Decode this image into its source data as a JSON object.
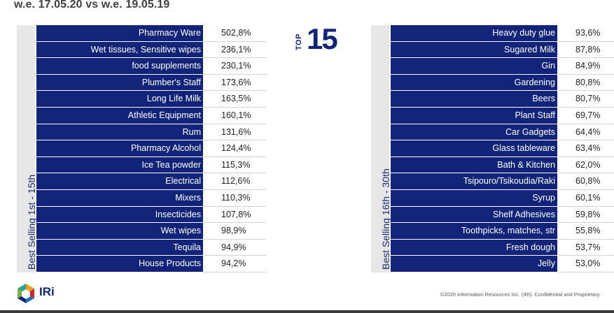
{
  "header": {
    "title": "w.e. 17.05.20 vs w.e. 19.05.19"
  },
  "badge": {
    "word": "TOP",
    "number": "15"
  },
  "left_panel": {
    "side_label": "Best Selling 1st - 15th",
    "rows": [
      {
        "category": "Pharmacy Ware",
        "value": "502,8%"
      },
      {
        "category": "Wet tissues, Sensitive wipes",
        "value": "236,1%"
      },
      {
        "category": "food supplements",
        "value": "230,1%"
      },
      {
        "category": "Plumber's Staff",
        "value": "173,6%"
      },
      {
        "category": "Long Life Milk",
        "value": "163,5%"
      },
      {
        "category": "Athletic Equipment",
        "value": "160,1%"
      },
      {
        "category": "Rum",
        "value": "131,6%"
      },
      {
        "category": "Pharmacy Alcohol",
        "value": "124,4%"
      },
      {
        "category": "Ice Tea powder",
        "value": "115,3%"
      },
      {
        "category": "Electrical",
        "value": "112,6%"
      },
      {
        "category": "Mixers",
        "value": "110,3%"
      },
      {
        "category": "Insecticides",
        "value": "107,8%"
      },
      {
        "category": "Wet wipes",
        "value": "98,9%"
      },
      {
        "category": "Tequila",
        "value": "94,9%"
      },
      {
        "category": "House Products",
        "value": "94,2%"
      }
    ]
  },
  "right_panel": {
    "side_label": "Best Selling 16th - 30th",
    "rows": [
      {
        "category": "Heavy duty glue",
        "value": "93,6%"
      },
      {
        "category": "Sugared Milk",
        "value": "87,8%"
      },
      {
        "category": "Gin",
        "value": "84,9%"
      },
      {
        "category": "Gardening",
        "value": "80,8%"
      },
      {
        "category": "Beers",
        "value": "80,7%"
      },
      {
        "category": "Plant Staff",
        "value": "69,7%"
      },
      {
        "category": "Car Gadgets",
        "value": "64,4%"
      },
      {
        "category": "Glass tableware",
        "value": "63,4%"
      },
      {
        "category": "Bath & Kitchen",
        "value": "62,0%"
      },
      {
        "category": "Tsipouro/Tsikoudia/Raki",
        "value": "60,8%"
      },
      {
        "category": "Syrup",
        "value": "60,1%"
      },
      {
        "category": "Shelf Adhesives",
        "value": "59,8%"
      },
      {
        "category": "Toothpicks, matches, str",
        "value": "55,8%"
      },
      {
        "category": "Fresh dough",
        "value": "53,7%"
      },
      {
        "category": "Jelly",
        "value": "53,0%"
      }
    ]
  },
  "footer": {
    "logo_text": "IRi",
    "copyright": "©2020 Information Resources Inc. (IRI). Confidential and Proprietary."
  },
  "colors": {
    "navy": "#12247a",
    "side_bar": "#e6e6e6",
    "text": "#222222"
  }
}
